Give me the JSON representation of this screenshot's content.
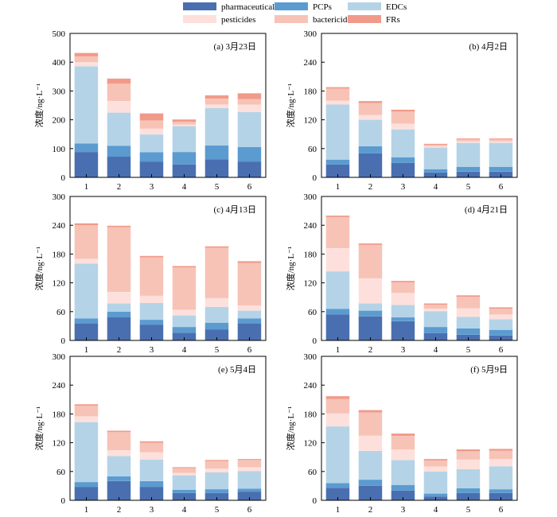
{
  "legend": [
    {
      "label": "pharmaceuticals",
      "color": "#4a6fb0"
    },
    {
      "label": "PCPs",
      "color": "#5b9bd0"
    },
    {
      "label": "EDCs",
      "color": "#b5d3e7"
    },
    {
      "label": "pesticides",
      "color": "#fde0dc"
    },
    {
      "label": "bactericides",
      "color": "#f7c3b7"
    },
    {
      "label": "FRs",
      "color": "#f19a8a"
    }
  ],
  "chart_data": [
    {
      "type": "bar",
      "stacked": true,
      "title": "(a) 3月23日",
      "ylabel": "浓度/ng·L⁻¹",
      "ylim": [
        0,
        500
      ],
      "yticks": [
        0,
        100,
        200,
        300,
        400,
        500
      ],
      "categories": [
        "1",
        "2",
        "3",
        "4",
        "5",
        "6"
      ],
      "series": [
        {
          "name": "pharmaceuticals",
          "values": [
            88,
            72,
            55,
            45,
            63,
            55
          ]
        },
        {
          "name": "PCPs",
          "values": [
            30,
            38,
            32,
            43,
            48,
            50
          ]
        },
        {
          "name": "EDCs",
          "values": [
            268,
            115,
            62,
            90,
            130,
            122
          ]
        },
        {
          "name": "pesticides",
          "values": [
            14,
            40,
            20,
            5,
            12,
            25
          ]
        },
        {
          "name": "bactericides",
          "values": [
            20,
            60,
            28,
            10,
            20,
            20
          ]
        },
        {
          "name": "FRs",
          "values": [
            12,
            18,
            25,
            8,
            12,
            20
          ]
        }
      ]
    },
    {
      "type": "bar",
      "stacked": true,
      "title": "(b) 4月2日",
      "ylabel": "浓度/ng·L⁻¹",
      "ylim": [
        0,
        300
      ],
      "yticks": [
        0,
        60,
        120,
        180,
        240,
        300
      ],
      "categories": [
        "1",
        "2",
        "3",
        "4",
        "5",
        "6"
      ],
      "series": [
        {
          "name": "pharmaceuticals",
          "values": [
            27,
            50,
            30,
            10,
            12,
            12
          ]
        },
        {
          "name": "PCPs",
          "values": [
            10,
            15,
            12,
            7,
            10,
            10
          ]
        },
        {
          "name": "EDCs",
          "values": [
            115,
            55,
            58,
            45,
            50,
            50
          ]
        },
        {
          "name": "pesticides",
          "values": [
            8,
            10,
            12,
            3,
            3,
            3
          ]
        },
        {
          "name": "bactericides",
          "values": [
            25,
            25,
            25,
            3,
            4,
            4
          ]
        },
        {
          "name": "FRs",
          "values": [
            3,
            4,
            4,
            2,
            2,
            2
          ]
        }
      ]
    },
    {
      "type": "bar",
      "stacked": true,
      "title": "(c) 4月13日",
      "ylabel": "浓度/ng·L⁻¹",
      "ylim": [
        0,
        300
      ],
      "yticks": [
        0,
        60,
        120,
        180,
        240,
        300
      ],
      "categories": [
        "1",
        "2",
        "3",
        "4",
        "5",
        "6"
      ],
      "series": [
        {
          "name": "pharmaceuticals",
          "values": [
            36,
            48,
            33,
            16,
            23,
            36
          ]
        },
        {
          "name": "PCPs",
          "values": [
            10,
            12,
            10,
            12,
            14,
            10
          ]
        },
        {
          "name": "EDCs",
          "values": [
            114,
            17,
            35,
            24,
            33,
            16
          ]
        },
        {
          "name": "pesticides",
          "values": [
            10,
            24,
            15,
            12,
            18,
            11
          ]
        },
        {
          "name": "bactericides",
          "values": [
            70,
            135,
            80,
            88,
            105,
            88
          ]
        },
        {
          "name": "FRs",
          "values": [
            4,
            3,
            3,
            3,
            3,
            4
          ]
        }
      ]
    },
    {
      "type": "bar",
      "stacked": true,
      "title": "(d) 4月21日",
      "ylabel": "浓度/ng·L⁻¹",
      "ylim": [
        0,
        300
      ],
      "yticks": [
        0,
        60,
        120,
        180,
        240,
        300
      ],
      "categories": [
        "1",
        "2",
        "3",
        "4",
        "5",
        "6"
      ],
      "series": [
        {
          "name": "pharmaceuticals",
          "values": [
            54,
            50,
            40,
            15,
            12,
            10
          ]
        },
        {
          "name": "PCPs",
          "values": [
            12,
            12,
            8,
            13,
            13,
            12
          ]
        },
        {
          "name": "EDCs",
          "values": [
            78,
            15,
            26,
            33,
            24,
            22
          ]
        },
        {
          "name": "pesticides",
          "values": [
            48,
            52,
            25,
            5,
            18,
            10
          ]
        },
        {
          "name": "bactericides",
          "values": [
            65,
            70,
            22,
            8,
            24,
            12
          ]
        },
        {
          "name": "FRs",
          "values": [
            3,
            3,
            3,
            3,
            3,
            3
          ]
        }
      ]
    },
    {
      "type": "bar",
      "stacked": true,
      "title": "(e) 5月4日",
      "ylabel": "浓度/ng·L⁻¹",
      "ylim": [
        0,
        300
      ],
      "yticks": [
        0,
        60,
        120,
        180,
        240,
        300
      ],
      "categories": [
        "1",
        "2",
        "3",
        "4",
        "5",
        "6"
      ],
      "series": [
        {
          "name": "pharmaceuticals",
          "values": [
            28,
            40,
            28,
            15,
            15,
            18
          ]
        },
        {
          "name": "PCPs",
          "values": [
            10,
            10,
            12,
            7,
            8,
            6
          ]
        },
        {
          "name": "EDCs",
          "values": [
            125,
            42,
            45,
            30,
            35,
            37
          ]
        },
        {
          "name": "pesticides",
          "values": [
            12,
            12,
            15,
            5,
            8,
            8
          ]
        },
        {
          "name": "bactericides",
          "values": [
            22,
            38,
            20,
            10,
            16,
            15
          ]
        },
        {
          "name": "FRs",
          "values": [
            3,
            3,
            3,
            2,
            2,
            2
          ]
        }
      ]
    },
    {
      "type": "bar",
      "stacked": true,
      "title": "(f) 5月9日",
      "ylabel": "浓度/ng·L⁻¹",
      "ylim": [
        0,
        300
      ],
      "yticks": [
        0,
        60,
        120,
        180,
        240,
        300
      ],
      "categories": [
        "1",
        "2",
        "3",
        "4",
        "5",
        "6"
      ],
      "series": [
        {
          "name": "pharmaceuticals",
          "values": [
            26,
            30,
            20,
            8,
            15,
            15
          ]
        },
        {
          "name": "PCPs",
          "values": [
            10,
            13,
            12,
            6,
            10,
            8
          ]
        },
        {
          "name": "EDCs",
          "values": [
            118,
            60,
            52,
            46,
            40,
            48
          ]
        },
        {
          "name": "pesticides",
          "values": [
            27,
            32,
            22,
            10,
            20,
            15
          ]
        },
        {
          "name": "bactericides",
          "values": [
            30,
            48,
            28,
            13,
            17,
            17
          ]
        },
        {
          "name": "FRs",
          "values": [
            6,
            5,
            5,
            3,
            4,
            4
          ]
        }
      ]
    }
  ]
}
